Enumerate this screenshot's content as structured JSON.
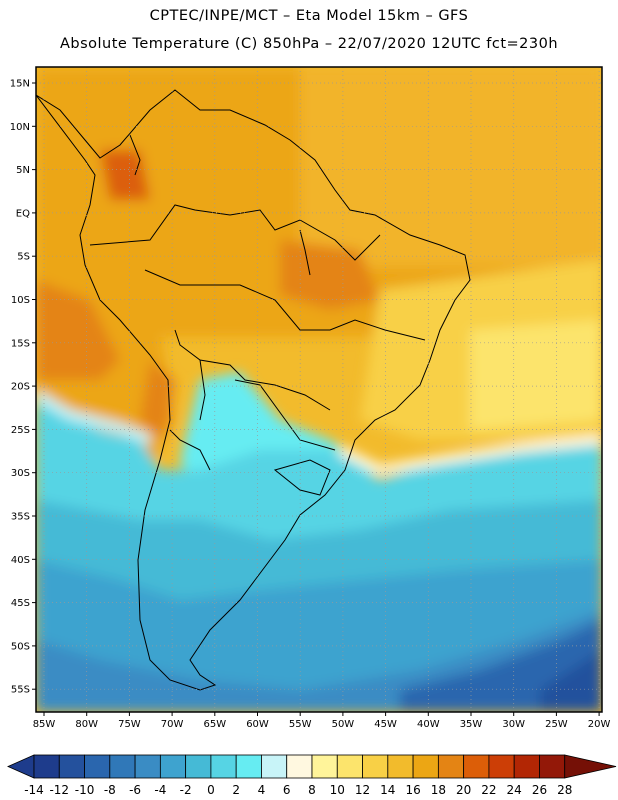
{
  "header": {
    "line1": "CPTEC/INPE/MCT –  Eta Model 15km – GFS",
    "line2": "Absolute Temperature (C) 850hPa – 22/07/2020 12UTC fct=230h"
  },
  "map": {
    "lat_labels": [
      "15N",
      "10N",
      "5N",
      "EQ",
      "5S",
      "10S",
      "15S",
      "20S",
      "25S",
      "30S",
      "35S",
      "40S",
      "45S",
      "50S",
      "55S"
    ],
    "lon_labels": [
      "85W",
      "80W",
      "75W",
      "70W",
      "65W",
      "60W",
      "55W",
      "50W",
      "45W",
      "40W",
      "35W",
      "30W",
      "25W",
      "20W"
    ],
    "grid": "dotted"
  },
  "colorbar": {
    "unit": "C",
    "labels": [
      "-14",
      "-12",
      "-10",
      "-8",
      "-6",
      "-4",
      "-2",
      "0",
      "2",
      "4",
      "6",
      "8",
      "10",
      "12",
      "14",
      "16",
      "18",
      "20",
      "22",
      "24",
      "26",
      "28"
    ],
    "colors": [
      "#1e3c8c",
      "#24519d",
      "#2a66ae",
      "#3078b8",
      "#3a8cc4",
      "#3ea3cf",
      "#45bad6",
      "#56d4e4",
      "#66ecf2",
      "#c8f4f8",
      "#fff8e0",
      "#fff49a",
      "#fce46c",
      "#f8d046",
      "#f2bb2c",
      "#eca614",
      "#e48414",
      "#dc5e08",
      "#cc3e06",
      "#b22604",
      "#931808",
      "#751006"
    ]
  }
}
